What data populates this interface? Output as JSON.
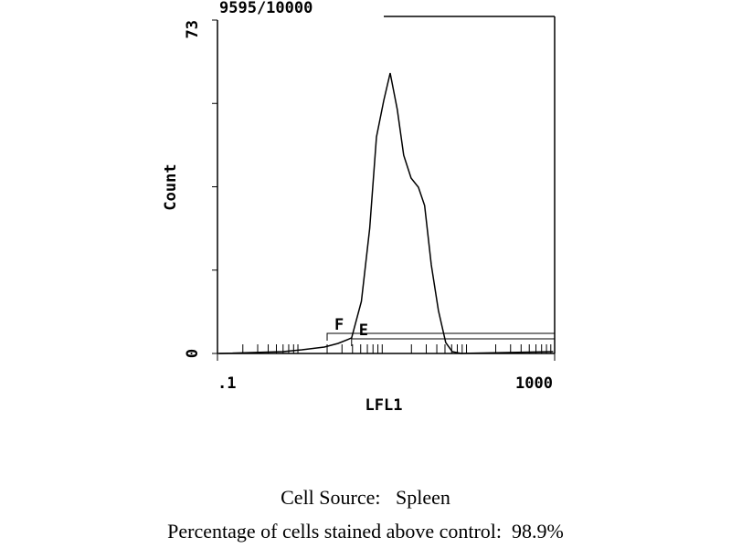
{
  "chart_data": {
    "type": "line",
    "title": "9595/10000",
    "ylabel": "Count",
    "xlabel": "LFL1",
    "log_x": true,
    "color": "#000000",
    "x": [
      0.105,
      0.6,
      1.0,
      1.85,
      2.7,
      3.9,
      5.1,
      6.4,
      7.7,
      9.4,
      11.2,
      13.6,
      16.2,
      19.8,
      24.2,
      28.7,
      34.4,
      41.8,
      51,
      61,
      78,
      960
    ],
    "values": [
      0,
      0.4,
      0.8,
      1.4,
      2.2,
      3.4,
      11.4,
      27.4,
      47.4,
      55.4,
      61.4,
      53.4,
      43.4,
      38.4,
      36.4,
      32.4,
      19.4,
      9.4,
      2.4,
      0.4,
      0,
      0.4
    ],
    "xlim": [
      0.1,
      1000
    ],
    "xticks": [
      {
        "value": 0.1,
        "label": ".1"
      },
      1000
    ],
    "ylim": [
      0,
      73
    ],
    "yticks": [
      0,
      73
    ],
    "yminor_ticks": [
      18.25,
      36.5,
      54.75
    ],
    "gates": [
      {
        "label": "F",
        "range": [
          2,
          1000
        ]
      },
      {
        "label": "E",
        "range": [
          3.9,
          1000
        ]
      }
    ]
  },
  "caption": [
    "Cell Source:   Spleen",
    "Percentage of cells stained above control:  98.9%"
  ]
}
